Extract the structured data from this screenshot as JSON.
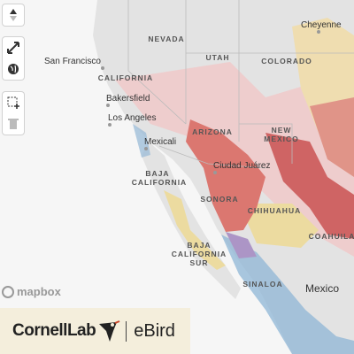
{
  "map": {
    "labels": [
      {
        "text": "Cheyenne",
        "kind": "city"
      },
      {
        "text": "NEVADA",
        "kind": "state"
      },
      {
        "text": "UTAH",
        "kind": "state"
      },
      {
        "text": "COLORADO",
        "kind": "state"
      },
      {
        "text": "San Francisco",
        "kind": "city"
      },
      {
        "text": "CALIFORNIA",
        "kind": "state"
      },
      {
        "text": "Bakersfield",
        "kind": "city"
      },
      {
        "text": "Los Angeles",
        "kind": "city"
      },
      {
        "text": "ARIZONA",
        "kind": "state"
      },
      {
        "text": "NEW",
        "kind": "state"
      },
      {
        "text": "MEXICO",
        "kind": "state"
      },
      {
        "text": "Mexicali",
        "kind": "city"
      },
      {
        "text": "Ciudad Juárez",
        "kind": "city"
      },
      {
        "text": "BAJA",
        "kind": "state"
      },
      {
        "text": "CALIFORNIA",
        "kind": "state"
      },
      {
        "text": "SONORA",
        "kind": "state"
      },
      {
        "text": "CHIHUAHUA",
        "kind": "state"
      },
      {
        "text": "COAHUILA",
        "kind": "state"
      },
      {
        "text": "BAJA",
        "kind": "state"
      },
      {
        "text": "CALIFORNIA",
        "kind": "state"
      },
      {
        "text": "SUR",
        "kind": "state"
      },
      {
        "text": "SINALOA",
        "kind": "state"
      },
      {
        "text": "Mexico",
        "kind": "country"
      }
    ],
    "attribution": "mapbox",
    "logo": {
      "cornell": "CornellLab",
      "ebird": "eBird"
    }
  }
}
